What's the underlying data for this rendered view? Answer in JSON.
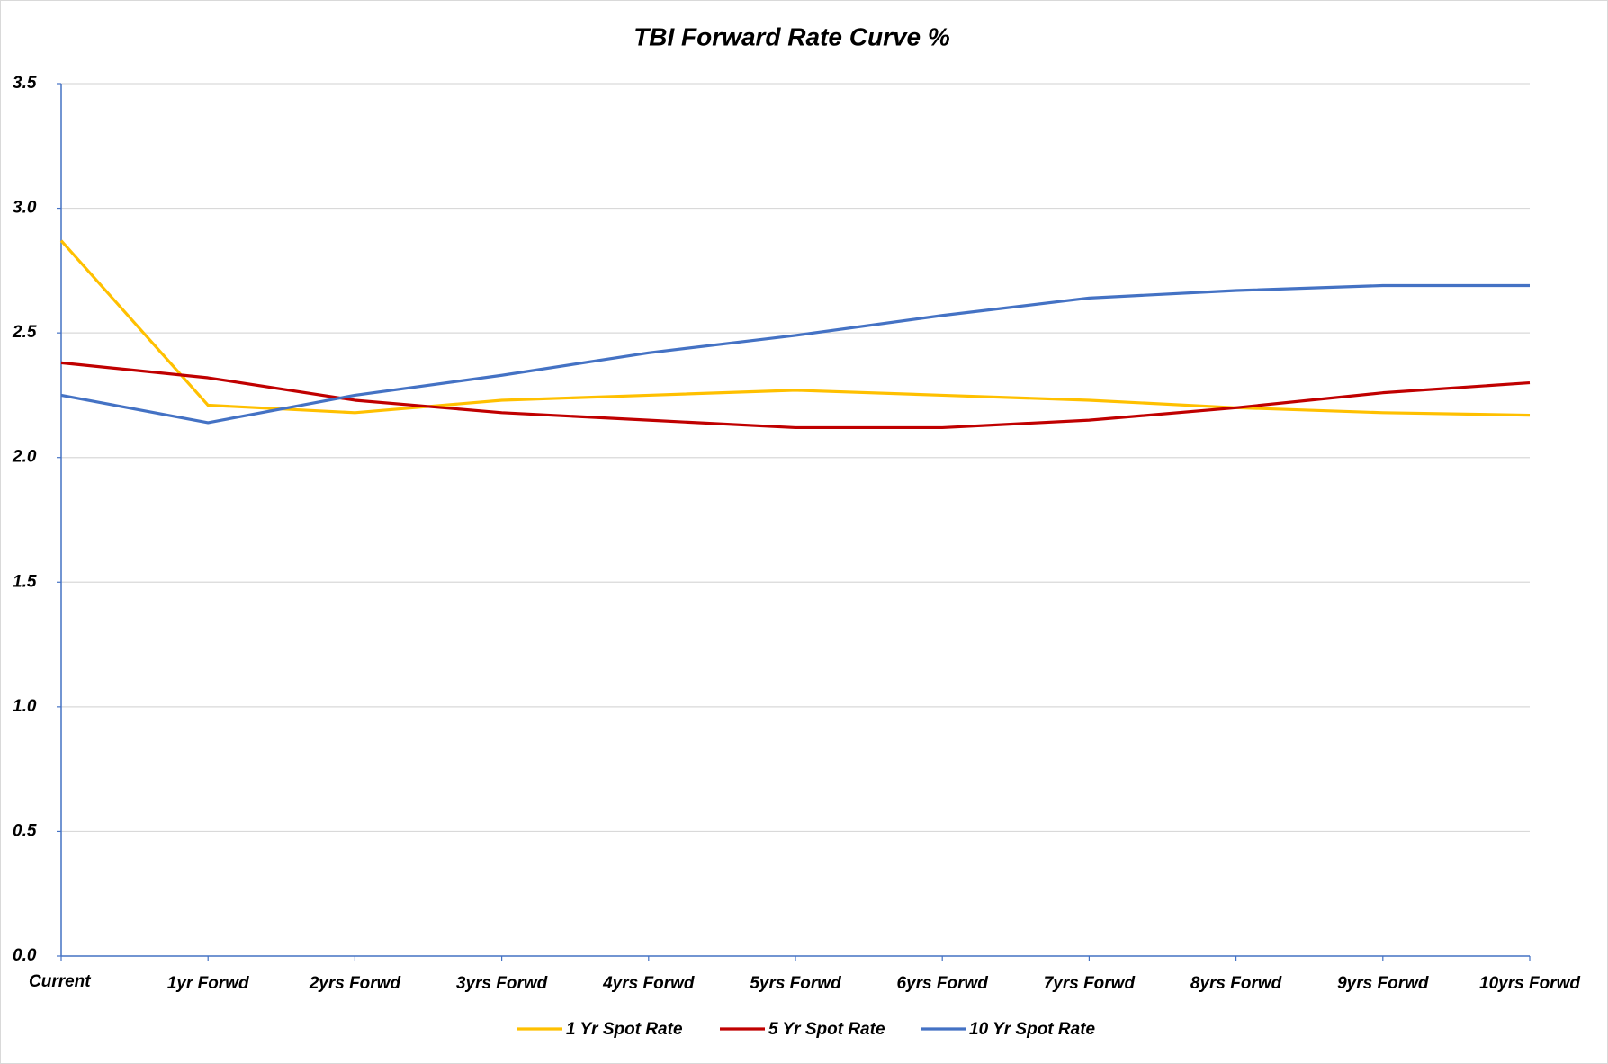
{
  "chart_data": {
    "type": "line",
    "title": "TBI Forward Rate Curve %",
    "categories": [
      "Current",
      "1yr Forwd",
      "2yrs Forwd",
      "3yrs Forwd",
      "4yrs Forwd",
      "5yrs Forwd",
      "6yrs Forwd",
      "7yrs Forwd",
      "8yrs Forwd",
      "9yrs Forwd",
      "10yrs Forwd"
    ],
    "series": [
      {
        "name": "1 Yr Spot Rate",
        "color": "#ffc000",
        "values": [
          2.87,
          2.21,
          2.18,
          2.23,
          2.25,
          2.27,
          2.25,
          2.23,
          2.2,
          2.18,
          2.17
        ]
      },
      {
        "name": "5 Yr Spot Rate",
        "color": "#c00000",
        "values": [
          2.38,
          2.32,
          2.23,
          2.18,
          2.15,
          2.12,
          2.12,
          2.15,
          2.2,
          2.26,
          2.3
        ]
      },
      {
        "name": "10 Yr Spot Rate",
        "color": "#4472c4",
        "values": [
          2.25,
          2.14,
          2.25,
          2.33,
          2.42,
          2.49,
          2.57,
          2.64,
          2.67,
          2.69,
          2.69
        ]
      }
    ],
    "ylim": [
      0,
      3.5
    ],
    "yticks": [
      {
        "value": 0,
        "label": "0.0"
      },
      0.5,
      {
        "value": 1,
        "label": "1.0"
      },
      1.5,
      {
        "value": 2,
        "label": "2.0"
      },
      2.5,
      {
        "value": 3,
        "label": "3.0"
      },
      3.5
    ],
    "grid": true,
    "legend": "bottom"
  }
}
